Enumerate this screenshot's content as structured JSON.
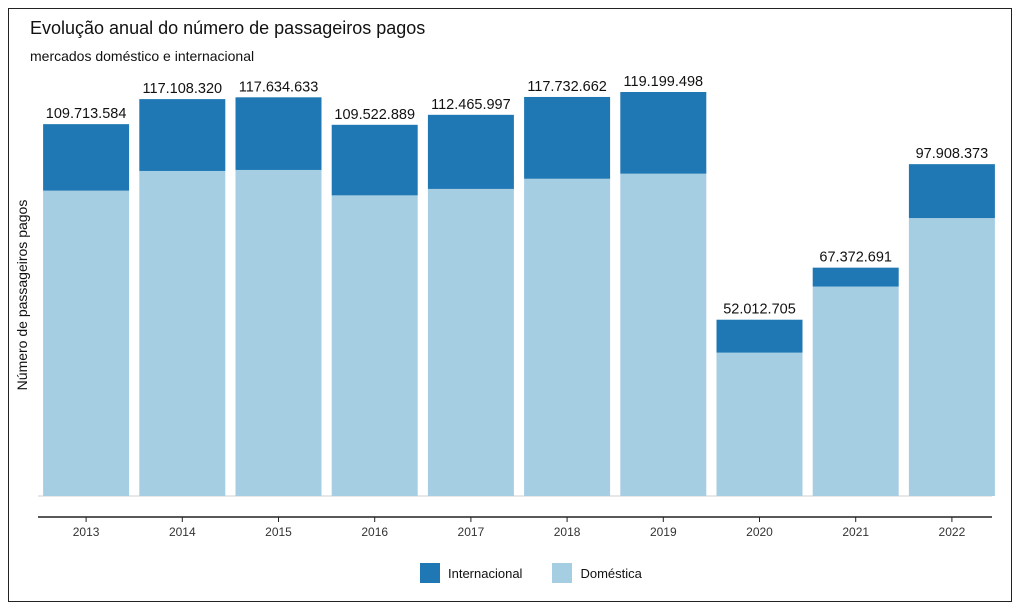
{
  "chart_data": {
    "type": "bar",
    "stacked": true,
    "title": "Evolução anual do número de passageiros pagos",
    "subtitle": "mercados doméstico e internacional",
    "xlabel": "",
    "ylabel": "Número de passageiros pagos",
    "categories": [
      "2013",
      "2014",
      "2015",
      "2016",
      "2017",
      "2018",
      "2019",
      "2020",
      "2021",
      "2022"
    ],
    "series": [
      {
        "name": "Doméstica",
        "color": "#a6cee3",
        "values": [
          90100000,
          95900000,
          96200000,
          88700000,
          90600000,
          93600000,
          95100000,
          42300000,
          61800000,
          82000000
        ]
      },
      {
        "name": "Internacional",
        "color": "#1f78b4",
        "values": [
          19613584,
          21208320,
          21434633,
          20822889,
          21865997,
          24132662,
          24099498,
          9712705,
          5572691,
          15908373
        ]
      }
    ],
    "totals": [
      "109.713.584",
      "117.108.320",
      "117.634.633",
      "109.522.889",
      "112.465.997",
      "117.732.662",
      "119.199.498",
      "52.012.705",
      "67.372.691",
      "97.908.373"
    ],
    "legend": [
      "Internacional",
      "Doméstica"
    ],
    "legend_position": "bottom",
    "grid": false
  }
}
